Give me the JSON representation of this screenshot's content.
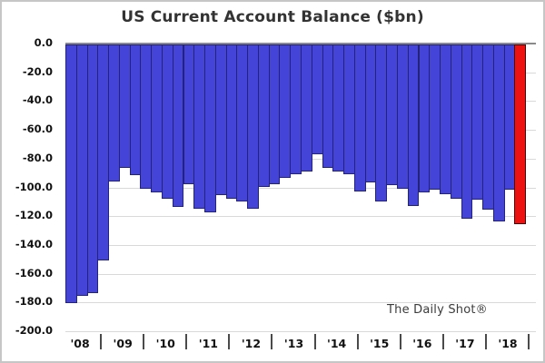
{
  "title": "US Current Account Balance ($bn)",
  "watermark": "The Daily Shot®",
  "colors": {
    "bar": "#4444d9",
    "bar_border": "#23237a",
    "highlight": "#ec1212",
    "highlight_border": "#4d0505",
    "grid": "#d9d9d9",
    "zero_line": "#8a8a8a",
    "axis_text": "#111111",
    "title_text": "#333333"
  },
  "chart_data": {
    "type": "bar",
    "title": "US Current Account Balance ($bn)",
    "unit": "$bn",
    "ylim": [
      -200,
      0
    ],
    "grid": true,
    "legend": "none",
    "y_ticks": [
      "0.0",
      "-20.0",
      "-40.0",
      "-60.0",
      "-80.0",
      "-100.0",
      "-120.0",
      "-140.0",
      "-160.0",
      "-180.0",
      "-200.0"
    ],
    "year_labels": [
      "'08",
      "'09",
      "'10",
      "'11",
      "'12",
      "'13",
      "'14",
      "'15",
      "'16",
      "'17",
      "'18"
    ],
    "x": [
      "2008 Q1",
      "2008 Q2",
      "2008 Q3",
      "2008 Q4",
      "2009 Q1",
      "2009 Q2",
      "2009 Q3",
      "2009 Q4",
      "2010 Q1",
      "2010 Q2",
      "2010 Q3",
      "2010 Q4",
      "2011 Q1",
      "2011 Q2",
      "2011 Q3",
      "2011 Q4",
      "2012 Q1",
      "2012 Q2",
      "2012 Q3",
      "2012 Q4",
      "2013 Q1",
      "2013 Q2",
      "2013 Q3",
      "2013 Q4",
      "2014 Q1",
      "2014 Q2",
      "2014 Q3",
      "2014 Q4",
      "2015 Q1",
      "2015 Q2",
      "2015 Q3",
      "2015 Q4",
      "2016 Q1",
      "2016 Q2",
      "2016 Q3",
      "2016 Q4",
      "2017 Q1",
      "2017 Q2",
      "2017 Q3",
      "2017 Q4",
      "2018 Q1",
      "2018 Q2",
      "2018 Q3"
    ],
    "values": [
      -180,
      -175,
      -173,
      -150,
      -95,
      -86,
      -91,
      -100,
      -103,
      -107,
      -113,
      -97,
      -114,
      -117,
      -105,
      -107,
      -109,
      -114,
      -99,
      -97,
      -93,
      -90,
      -88,
      -76,
      -86,
      -88,
      -90,
      -102,
      -96,
      -109,
      -98,
      -100,
      -112,
      -103,
      -101,
      -104,
      -107,
      -121,
      -108,
      -115,
      -123,
      -101,
      -125
    ],
    "highlight_index": 42,
    "total_slots": 44
  }
}
